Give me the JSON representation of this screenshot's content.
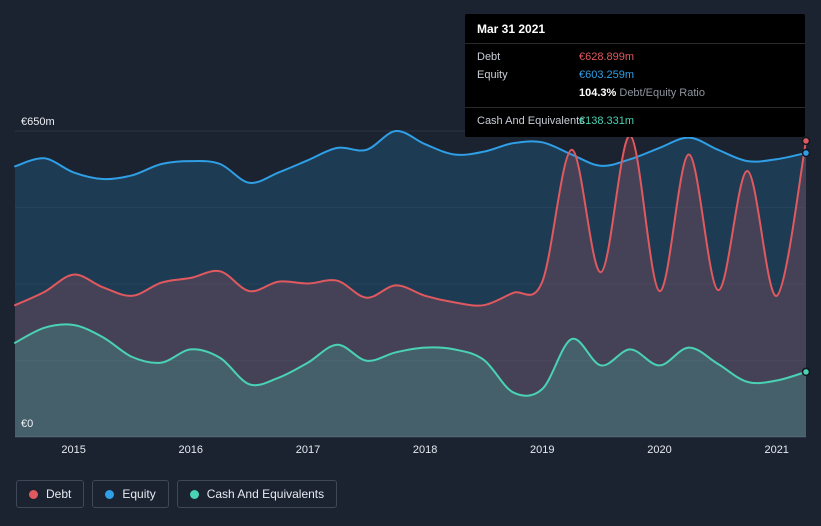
{
  "colors": {
    "background": "#1b2230",
    "debt": "#e0595f",
    "equity": "#2f9fe6",
    "cash": "#4ad2b4",
    "tooltip_bg": "#000000",
    "grid": "#242c3a",
    "axis_line": "#3c4452",
    "text": "#e6eaf0",
    "text_muted": "#8e949e"
  },
  "tooltip": {
    "date": "Mar 31 2021",
    "debt": {
      "label": "Debt",
      "value": "€628.899m"
    },
    "equity": {
      "label": "Equity",
      "value": "€603.259m"
    },
    "ratio": {
      "bold": "104.3%",
      "text": "Debt/Equity Ratio"
    },
    "cash": {
      "label": "Cash And Equivalents",
      "value": "€138.331m"
    }
  },
  "legend": {
    "items": [
      {
        "label": "Debt",
        "color_key": "debt"
      },
      {
        "label": "Equity",
        "color_key": "equity"
      },
      {
        "label": "Cash And Equivalents",
        "color_key": "cash"
      }
    ]
  },
  "chart_data": {
    "type": "area",
    "unit": "€m",
    "x_range": [
      2014.5,
      2021.25
    ],
    "ylim": [
      0,
      650
    ],
    "y_axis_labels": {
      "top": "€650m",
      "bottom": "€0"
    },
    "x_ticks": [
      2015,
      2016,
      2017,
      2018,
      2019,
      2020,
      2021
    ],
    "x_tick_labels": [
      "2015",
      "2016",
      "2017",
      "2018",
      "2019",
      "2020",
      "2021"
    ],
    "x_years": [
      2014.5,
      2014.75,
      2015.0,
      2015.25,
      2015.5,
      2015.75,
      2016.0,
      2016.25,
      2016.5,
      2016.75,
      2017.0,
      2017.25,
      2017.5,
      2017.75,
      2018.0,
      2018.25,
      2018.5,
      2018.75,
      2019.0,
      2019.25,
      2019.5,
      2019.75,
      2020.0,
      2020.25,
      2020.5,
      2020.75,
      2021.0,
      2021.25
    ],
    "series": [
      {
        "name": "Debt",
        "color": "#e0595f",
        "fill_opacity": 0.2,
        "values": [
          280,
          308,
          345,
          318,
          300,
          328,
          338,
          352,
          310,
          330,
          326,
          332,
          296,
          322,
          300,
          286,
          280,
          306,
          330,
          610,
          350,
          640,
          310,
          600,
          312,
          565,
          300,
          628.899
        ]
      },
      {
        "name": "Equity",
        "color": "#2f9fe6",
        "fill_opacity": 0.2,
        "values": [
          575,
          592,
          562,
          548,
          556,
          580,
          586,
          580,
          540,
          562,
          588,
          614,
          610,
          650,
          622,
          600,
          606,
          624,
          626,
          600,
          576,
          590,
          614,
          636,
          610,
          586,
          590,
          603.259
        ]
      },
      {
        "name": "Cash And Equivalents",
        "color": "#4ad2b4",
        "fill_opacity": 0.22,
        "values": [
          200,
          232,
          238,
          212,
          170,
          158,
          186,
          168,
          112,
          126,
          158,
          196,
          162,
          180,
          190,
          186,
          164,
          95,
          102,
          208,
          152,
          186,
          152,
          190,
          155,
          117,
          120,
          138.331
        ]
      }
    ],
    "legend_position": "bottom-left",
    "grid": true
  }
}
